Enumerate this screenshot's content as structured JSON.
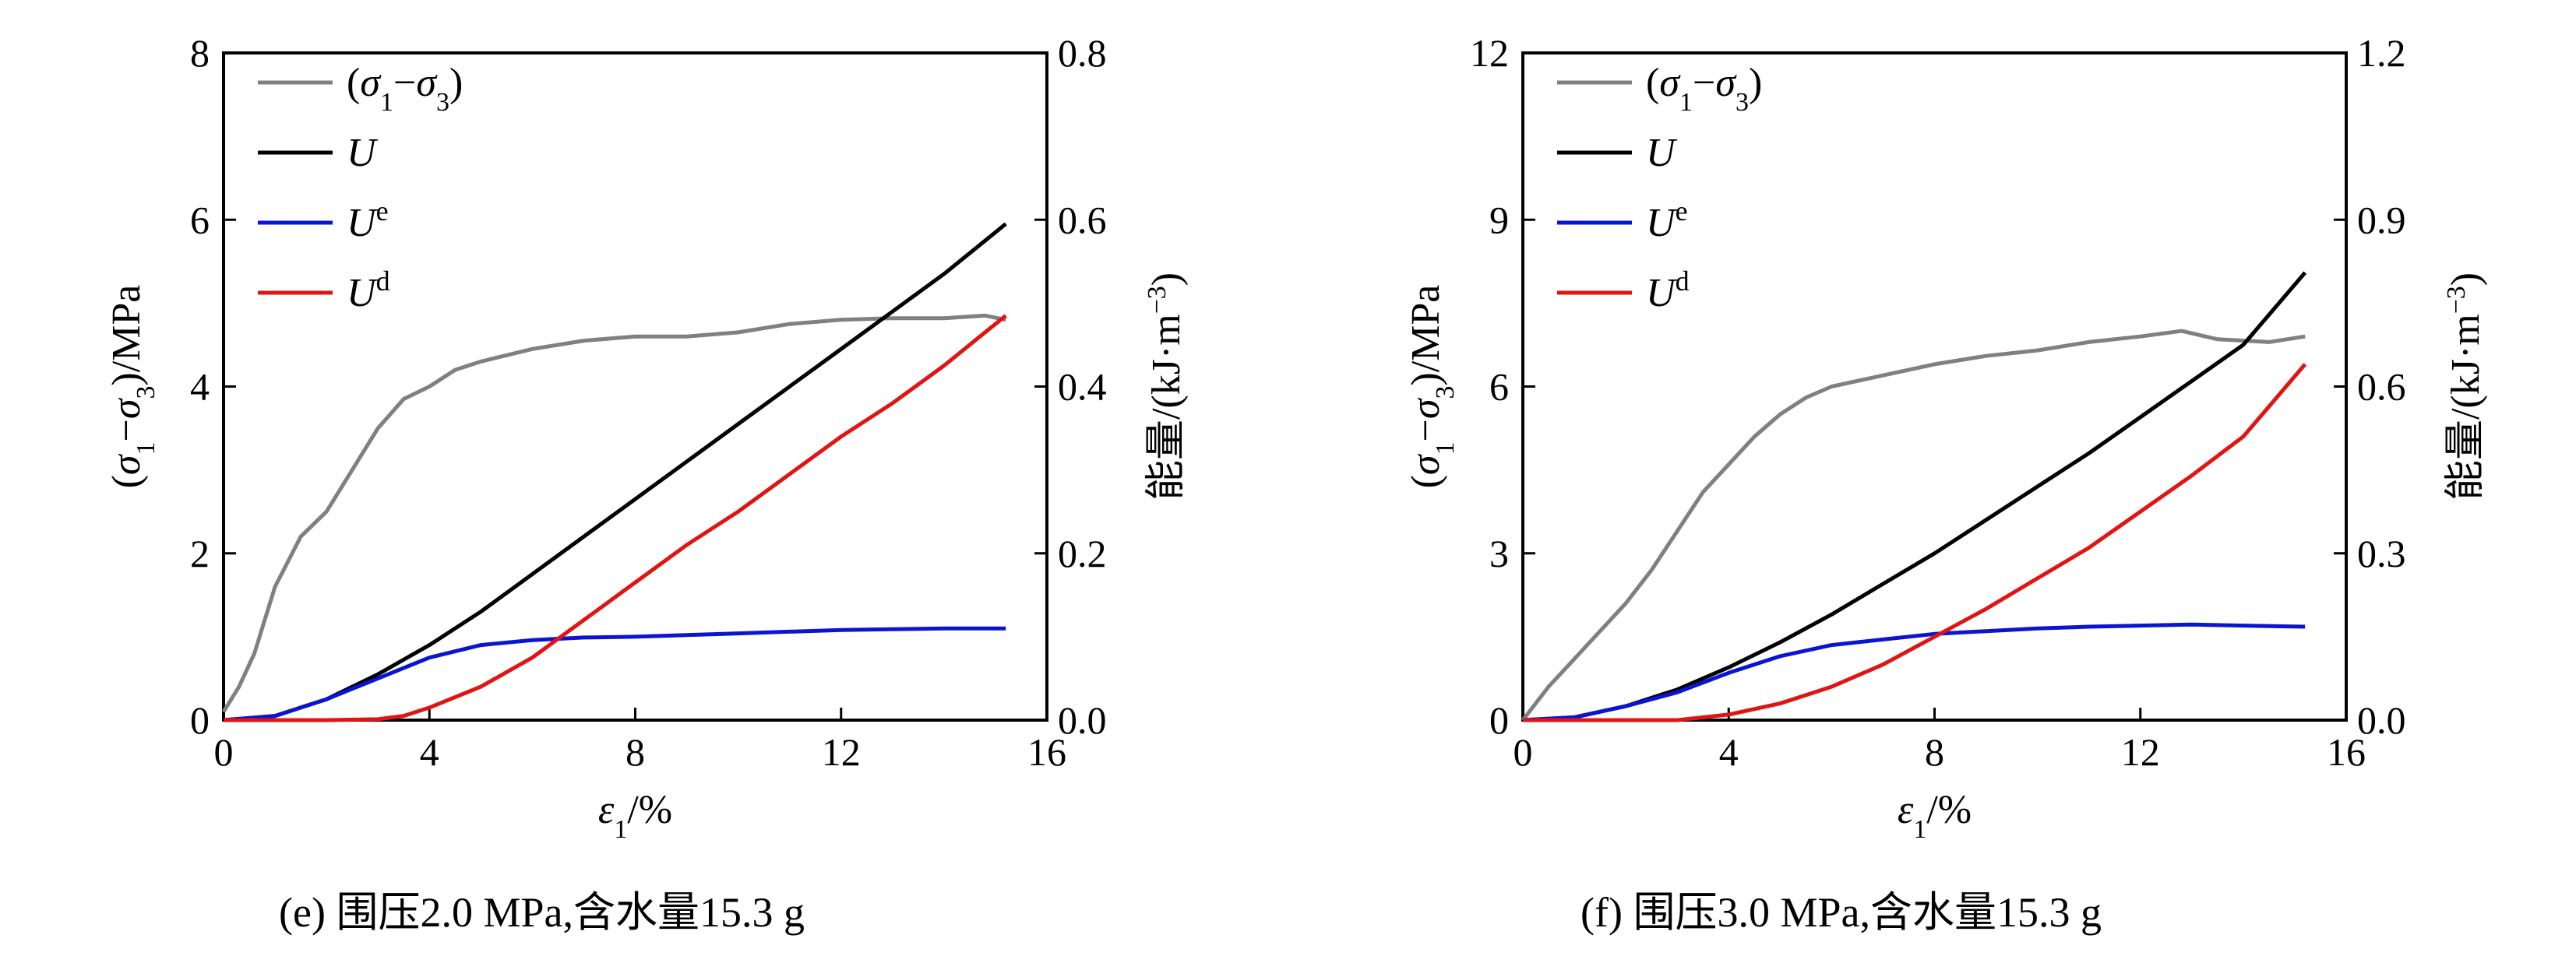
{
  "legend_labels": {
    "stress": "(σ1−σ3)",
    "U": "U",
    "Ue": "Ue",
    "Ud": "Ud"
  },
  "colors": {
    "stress": "#808080",
    "U": "#000000",
    "Ue": "#0a14d2",
    "Ud": "#e11414"
  },
  "chart_data": [
    {
      "type": "line",
      "caption": "(e) 围压2.0 MPa,含水量15.3 g",
      "xlabel": "ε1/%",
      "ylabel_left": "(σ1−σ3)/MPa",
      "ylabel_right": "能量/(kJ·m−3)",
      "xlim": [
        0,
        16
      ],
      "ylim_left": [
        0,
        8
      ],
      "ylim_right": [
        0,
        0.8
      ],
      "xticks": [
        "0",
        "4",
        "8",
        "12",
        "16"
      ],
      "yticks_left": [
        "0",
        "2",
        "4",
        "6",
        "8"
      ],
      "yticks_right": [
        "0.0",
        "0.2",
        "0.4",
        "0.6",
        "0.8"
      ],
      "legend_position": "top-left",
      "series": [
        {
          "name": "(σ1−σ3)",
          "axis": "left",
          "points": [
            [
              0,
              0.1
            ],
            [
              0.3,
              0.4
            ],
            [
              0.6,
              0.8
            ],
            [
              1.0,
              1.6
            ],
            [
              1.5,
              2.2
            ],
            [
              2.0,
              2.5
            ],
            [
              2.5,
              3.0
            ],
            [
              3.0,
              3.5
            ],
            [
              3.5,
              3.85
            ],
            [
              4.0,
              4.0
            ],
            [
              4.5,
              4.2
            ],
            [
              5.0,
              4.3
            ],
            [
              6.0,
              4.45
            ],
            [
              7.0,
              4.55
            ],
            [
              8.0,
              4.6
            ],
            [
              9.0,
              4.6
            ],
            [
              10.0,
              4.65
            ],
            [
              11.0,
              4.75
            ],
            [
              12.0,
              4.8
            ],
            [
              13.0,
              4.82
            ],
            [
              14.0,
              4.82
            ],
            [
              14.8,
              4.85
            ],
            [
              15.2,
              4.8
            ]
          ]
        },
        {
          "name": "U",
          "axis": "right",
          "points": [
            [
              0,
              0
            ],
            [
              1,
              0.005
            ],
            [
              2,
              0.025
            ],
            [
              3,
              0.055
            ],
            [
              4,
              0.09
            ],
            [
              5,
              0.13
            ],
            [
              6,
              0.175
            ],
            [
              7,
              0.22
            ],
            [
              8,
              0.265
            ],
            [
              9,
              0.31
            ],
            [
              10,
              0.355
            ],
            [
              11,
              0.4
            ],
            [
              12,
              0.445
            ],
            [
              13,
              0.49
            ],
            [
              14,
              0.535
            ],
            [
              15.2,
              0.595
            ]
          ]
        },
        {
          "name": "Ue",
          "axis": "right",
          "points": [
            [
              0,
              0
            ],
            [
              1,
              0.005
            ],
            [
              2,
              0.025
            ],
            [
              3,
              0.05
            ],
            [
              4,
              0.075
            ],
            [
              5,
              0.09
            ],
            [
              6,
              0.096
            ],
            [
              7,
              0.099
            ],
            [
              8,
              0.1
            ],
            [
              9,
              0.102
            ],
            [
              10,
              0.104
            ],
            [
              11,
              0.106
            ],
            [
              12,
              0.108
            ],
            [
              13,
              0.109
            ],
            [
              14,
              0.11
            ],
            [
              15.2,
              0.11
            ]
          ]
        },
        {
          "name": "Ud",
          "axis": "right",
          "points": [
            [
              0,
              0
            ],
            [
              2,
              0
            ],
            [
              3,
              0.001
            ],
            [
              3.5,
              0.005
            ],
            [
              4,
              0.015
            ],
            [
              5,
              0.04
            ],
            [
              6,
              0.075
            ],
            [
              7,
              0.12
            ],
            [
              8,
              0.165
            ],
            [
              9,
              0.21
            ],
            [
              10,
              0.25
            ],
            [
              11,
              0.295
            ],
            [
              12,
              0.34
            ],
            [
              13,
              0.38
            ],
            [
              14,
              0.425
            ],
            [
              15.2,
              0.485
            ]
          ]
        }
      ]
    },
    {
      "type": "line",
      "caption": "(f) 围压3.0 MPa,含水量15.3 g",
      "xlabel": "ε1/%",
      "ylabel_left": "(σ1−σ3)/MPa",
      "ylabel_right": "能量/(kJ·m−3)",
      "xlim": [
        0,
        16
      ],
      "ylim_left": [
        0,
        12
      ],
      "ylim_right": [
        0,
        1.2
      ],
      "xticks": [
        "0",
        "4",
        "8",
        "12",
        "16"
      ],
      "yticks_left": [
        "0",
        "3",
        "6",
        "9",
        "12"
      ],
      "yticks_right": [
        "0.0",
        "0.3",
        "0.6",
        "0.9",
        "1.2"
      ],
      "legend_position": "top-left",
      "series": [
        {
          "name": "(σ1−σ3)",
          "axis": "left",
          "points": [
            [
              0,
              0
            ],
            [
              0.5,
              0.6
            ],
            [
              1.0,
              1.1
            ],
            [
              1.5,
              1.6
            ],
            [
              2.0,
              2.1
            ],
            [
              2.5,
              2.7
            ],
            [
              3.0,
              3.4
            ],
            [
              3.5,
              4.1
            ],
            [
              4.0,
              4.6
            ],
            [
              4.5,
              5.1
            ],
            [
              5.0,
              5.5
            ],
            [
              5.5,
              5.8
            ],
            [
              6.0,
              6.0
            ],
            [
              7.0,
              6.2
            ],
            [
              8.0,
              6.4
            ],
            [
              9.0,
              6.55
            ],
            [
              10.0,
              6.65
            ],
            [
              11.0,
              6.8
            ],
            [
              12.0,
              6.9
            ],
            [
              12.8,
              7.0
            ],
            [
              13.5,
              6.85
            ],
            [
              14.5,
              6.8
            ],
            [
              15.2,
              6.9
            ]
          ]
        },
        {
          "name": "U",
          "axis": "right",
          "points": [
            [
              0,
              0
            ],
            [
              1,
              0.005
            ],
            [
              2,
              0.025
            ],
            [
              3,
              0.055
            ],
            [
              4,
              0.095
            ],
            [
              5,
              0.14
            ],
            [
              6,
              0.19
            ],
            [
              7,
              0.245
            ],
            [
              8,
              0.3
            ],
            [
              9,
              0.36
            ],
            [
              10,
              0.42
            ],
            [
              11,
              0.48
            ],
            [
              12,
              0.545
            ],
            [
              13,
              0.61
            ],
            [
              14,
              0.675
            ],
            [
              15.2,
              0.805
            ]
          ]
        },
        {
          "name": "Ue",
          "axis": "right",
          "points": [
            [
              0,
              0
            ],
            [
              1,
              0.005
            ],
            [
              2,
              0.025
            ],
            [
              3,
              0.05
            ],
            [
              4,
              0.085
            ],
            [
              5,
              0.115
            ],
            [
              6,
              0.135
            ],
            [
              7,
              0.145
            ],
            [
              8,
              0.155
            ],
            [
              9,
              0.16
            ],
            [
              10,
              0.165
            ],
            [
              11,
              0.168
            ],
            [
              12,
              0.17
            ],
            [
              13,
              0.172
            ],
            [
              14,
              0.17
            ],
            [
              15.2,
              0.168
            ]
          ]
        },
        {
          "name": "Ud",
          "axis": "right",
          "points": [
            [
              0,
              0
            ],
            [
              3,
              0
            ],
            [
              4,
              0.01
            ],
            [
              5,
              0.03
            ],
            [
              6,
              0.06
            ],
            [
              7,
              0.1
            ],
            [
              8,
              0.15
            ],
            [
              9,
              0.2
            ],
            [
              10,
              0.255
            ],
            [
              11,
              0.31
            ],
            [
              12,
              0.375
            ],
            [
              13,
              0.44
            ],
            [
              14,
              0.51
            ],
            [
              15.2,
              0.64
            ]
          ]
        }
      ]
    }
  ]
}
